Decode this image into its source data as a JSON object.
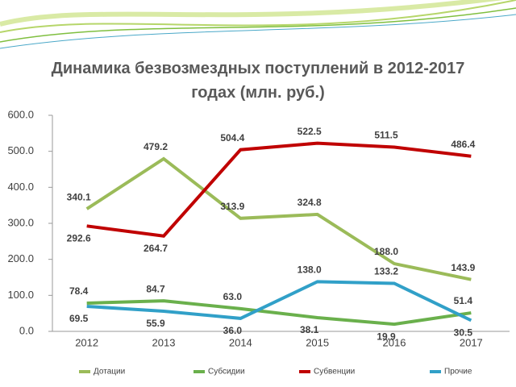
{
  "chart_data": {
    "type": "line",
    "title": "Динамика безвозмездных поступлений в 2012-2017 годах (млн. руб.)",
    "categories": [
      "2012",
      "2013",
      "2014",
      "2015",
      "2016",
      "2017"
    ],
    "ylim": [
      0,
      600
    ],
    "yticks": [
      {
        "value": 0,
        "label": "0.0"
      },
      {
        "value": 100,
        "label": "100.0"
      },
      {
        "value": 200,
        "label": "200.0"
      },
      {
        "value": 300,
        "label": "300.0"
      },
      {
        "value": 400,
        "label": "400.0"
      },
      {
        "value": 500,
        "label": "500.0"
      },
      {
        "value": 600,
        "label": "600.0"
      }
    ],
    "legend": "bottom",
    "series": [
      {
        "name": "Дотации",
        "color": "#9bbb59",
        "values": [
          340.1,
          479.2,
          313.9,
          324.8,
          188.0,
          143.9
        ],
        "value_labels": [
          "340.1",
          "479.2",
          "313.9",
          "324.8",
          "188.0",
          "143.9"
        ]
      },
      {
        "name": "Субсидии",
        "color": "#6ab04c",
        "values": [
          78.4,
          84.7,
          63.0,
          38.1,
          19.9,
          51.4
        ],
        "value_labels": [
          "78.4",
          "84.7",
          "63.0",
          "38.1",
          "19.9",
          "51.4"
        ]
      },
      {
        "name": "Субвенции",
        "color": "#c00000",
        "values": [
          292.6,
          264.7,
          504.4,
          522.5,
          511.5,
          486.4
        ],
        "value_labels": [
          "292.6",
          "264.7",
          "504.4",
          "522.5",
          "511.5",
          "486.4"
        ]
      },
      {
        "name": "Прочие",
        "color": "#31a0c8",
        "values": [
          69.5,
          55.9,
          36.0,
          138.0,
          133.2,
          30.5
        ],
        "value_labels": [
          "69.5",
          "55.9",
          "36.0",
          "138.0",
          "133.2",
          "30.5"
        ]
      }
    ]
  }
}
